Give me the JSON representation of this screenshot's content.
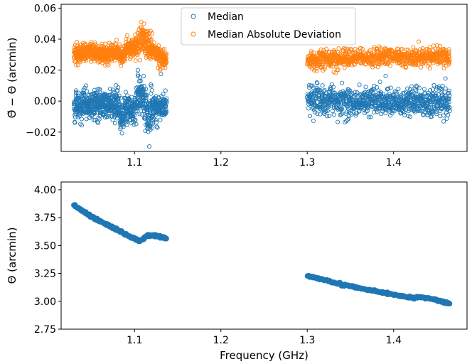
{
  "chart_data": [
    {
      "type": "scatter",
      "xlabel": "",
      "ylabel": "Θ̃ − Θ (arcmin)",
      "xlim": [
        1.015,
        1.485
      ],
      "ylim": [
        -0.0325,
        0.0625
      ],
      "xticks": [
        1.1,
        1.2,
        1.3,
        1.4
      ],
      "xtick_labels": [
        "1.1",
        "1.2",
        "1.3",
        "1.4"
      ],
      "yticks": [
        -0.02,
        0.0,
        0.02,
        0.04,
        0.06
      ],
      "ytick_labels": [
        "−0.02",
        "0.00",
        "0.02",
        "0.04",
        "0.06"
      ],
      "legend_position": "top-center",
      "series": [
        {
          "name": "Median",
          "color": "#1f77b4",
          "marker": "open-circle",
          "x": [
            1.03,
            1.04,
            1.05,
            1.06,
            1.07,
            1.08,
            1.085,
            1.09,
            1.1,
            1.105,
            1.11,
            1.115,
            1.12,
            1.13,
            1.137,
            1.3,
            1.32,
            1.34,
            1.36,
            1.38,
            1.4,
            1.42,
            1.44,
            1.465
          ],
          "values": [
            -0.004,
            -0.002,
            -0.004,
            -0.001,
            -0.003,
            -0.002,
            -0.012,
            -0.004,
            -0.006,
            0.006,
            0.002,
            -0.009,
            -0.003,
            -0.004,
            -0.003,
            0.002,
            0.0,
            0.001,
            -0.001,
            0.001,
            -0.001,
            0.0,
            -0.001,
            0.0
          ]
        },
        {
          "name": "Median Absolute Deviation",
          "color": "#ff7f0e",
          "marker": "open-circle",
          "x": [
            1.03,
            1.04,
            1.05,
            1.06,
            1.07,
            1.08,
            1.085,
            1.09,
            1.1,
            1.105,
            1.11,
            1.115,
            1.12,
            1.13,
            1.137,
            1.3,
            1.32,
            1.34,
            1.36,
            1.38,
            1.4,
            1.42,
            1.44,
            1.465
          ],
          "values": [
            0.031,
            0.031,
            0.032,
            0.03,
            0.031,
            0.031,
            0.029,
            0.033,
            0.035,
            0.037,
            0.04,
            0.037,
            0.034,
            0.028,
            0.026,
            0.026,
            0.027,
            0.027,
            0.028,
            0.028,
            0.029,
            0.028,
            0.029,
            0.028
          ]
        }
      ]
    },
    {
      "type": "scatter",
      "xlabel": "Frequency (GHz)",
      "ylabel": "Θ (arcmin)",
      "xlim": [
        1.015,
        1.485
      ],
      "ylim": [
        2.75,
        4.07
      ],
      "xticks": [
        1.1,
        1.2,
        1.3,
        1.4
      ],
      "xtick_labels": [
        "1.1",
        "1.2",
        "1.3",
        "1.4"
      ],
      "yticks": [
        2.75,
        3.0,
        3.25,
        3.5,
        3.75,
        4.0
      ],
      "ytick_labels": [
        "2.75",
        "3.00",
        "3.25",
        "3.50",
        "3.75",
        "4.00"
      ],
      "series": [
        {
          "name": "Θ",
          "color": "#1f77b4",
          "marker": "filled-circle",
          "x": [
            1.03,
            1.04,
            1.05,
            1.06,
            1.07,
            1.08,
            1.09,
            1.1,
            1.105,
            1.11,
            1.115,
            1.12,
            1.13,
            1.137,
            1.3,
            1.31,
            1.32,
            1.34,
            1.36,
            1.38,
            1.4,
            1.42,
            1.43,
            1.44,
            1.45,
            1.465
          ],
          "values": [
            3.86,
            3.81,
            3.76,
            3.72,
            3.68,
            3.64,
            3.6,
            3.56,
            3.54,
            3.56,
            3.59,
            3.59,
            3.58,
            3.56,
            3.23,
            3.21,
            3.19,
            3.15,
            3.12,
            3.09,
            3.06,
            3.03,
            3.04,
            3.03,
            3.01,
            2.98
          ]
        }
      ]
    }
  ]
}
